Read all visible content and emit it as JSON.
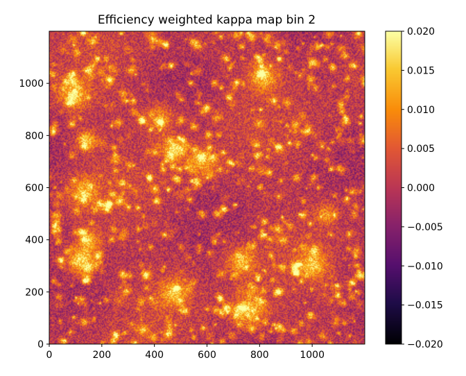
{
  "chart_data": {
    "type": "heatmap",
    "title": "Efficiency weighted kappa map bin 2",
    "xlabel": "",
    "ylabel": "",
    "xlim": [
      0,
      1200
    ],
    "ylim": [
      0,
      1200
    ],
    "x_ticks": [
      0,
      200,
      400,
      600,
      800,
      1000
    ],
    "y_ticks": [
      0,
      200,
      400,
      600,
      800,
      1000
    ],
    "colormap": "inferno",
    "colorbar": {
      "vmin": -0.02,
      "vmax": 0.02,
      "ticks": [
        -0.02,
        -0.015,
        -0.01,
        -0.005,
        0.0,
        0.005,
        0.01,
        0.015,
        0.02
      ],
      "tick_labels": [
        "−0.020",
        "−0.015",
        "−0.010",
        "−0.005",
        "0.000",
        "0.005",
        "0.010",
        "0.015",
        "0.020"
      ]
    },
    "description": "convergence (kappa) field, values mostly between -0.007 and 0.02 with bright clustered peaks",
    "hotspots": [
      {
        "x": 120,
        "y": 320,
        "value": 0.02
      },
      {
        "x": 470,
        "y": 750,
        "value": 0.018
      },
      {
        "x": 730,
        "y": 320,
        "value": 0.016
      },
      {
        "x": 760,
        "y": 130,
        "value": 0.017
      },
      {
        "x": 1000,
        "y": 310,
        "value": 0.015
      },
      {
        "x": 470,
        "y": 200,
        "value": 0.015
      },
      {
        "x": 140,
        "y": 780,
        "value": 0.016
      },
      {
        "x": 90,
        "y": 960,
        "value": 0.015
      },
      {
        "x": 810,
        "y": 1030,
        "value": 0.015
      },
      {
        "x": 130,
        "y": 590,
        "value": 0.014
      },
      {
        "x": 580,
        "y": 700,
        "value": 0.014
      },
      {
        "x": 150,
        "y": 400,
        "value": 0.013
      },
      {
        "x": 420,
        "y": 870,
        "value": 0.013
      },
      {
        "x": 1050,
        "y": 500,
        "value": 0.012
      }
    ]
  }
}
